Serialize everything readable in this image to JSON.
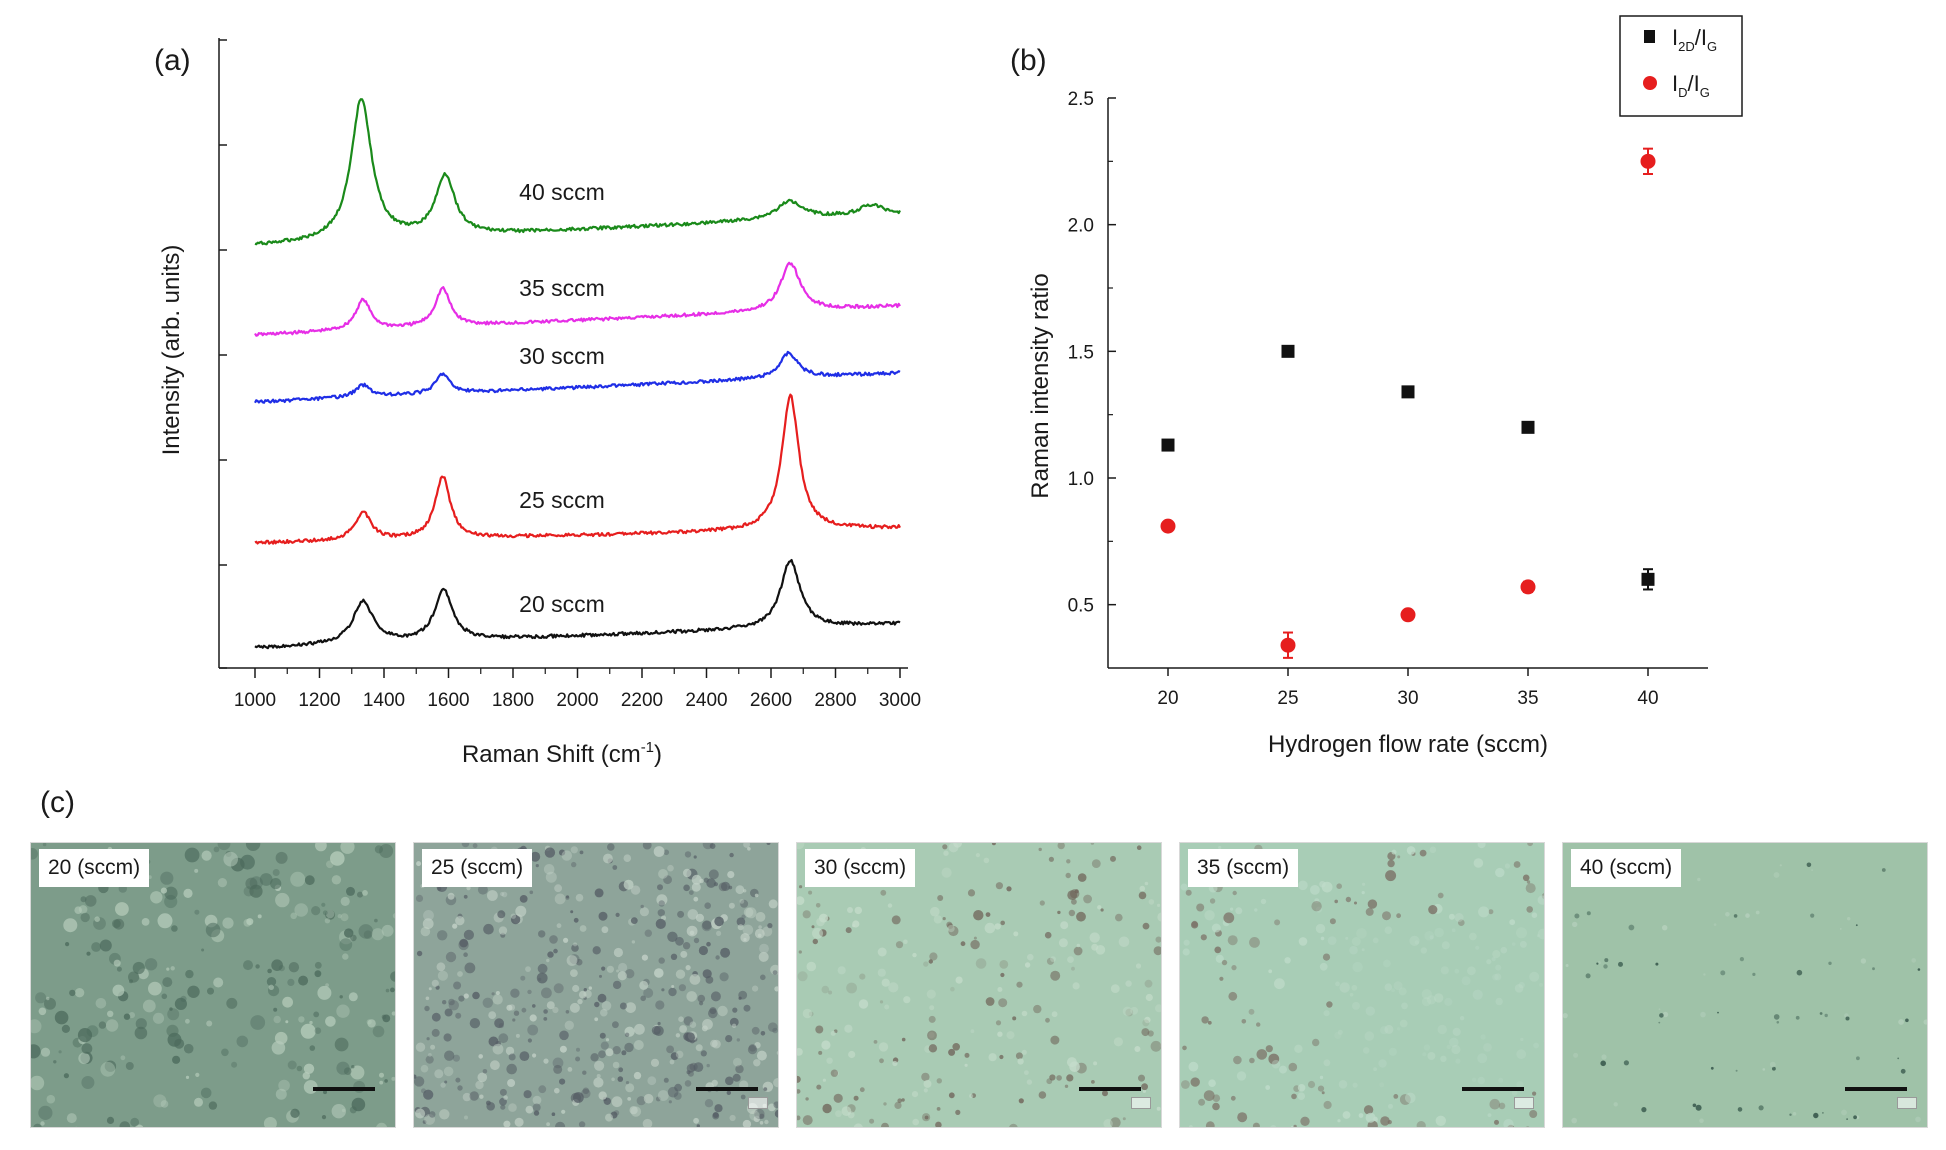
{
  "chart_data": [
    {
      "panel": "(a)",
      "type": "line",
      "xlabel": "Raman Shift (cm",
      "xlabel_sup": "-1",
      "xlabel_end": ")",
      "ylabel": "Intensity (arb. units)",
      "xlim": [
        1000,
        3000
      ],
      "x_ticks": [
        "1000",
        "1200",
        "1400",
        "1600",
        "1800",
        "2000",
        "2200",
        "2400",
        "2600",
        "2800",
        "3000"
      ],
      "grid": false,
      "series": [
        {
          "name": "40 sccm",
          "color": "#1a8a1a",
          "peaks": {
            "D": 1330,
            "G": 1590,
            "2D": 2660
          }
        },
        {
          "name": "35 sccm",
          "color": "#e62ee6",
          "peaks": {
            "D": 1335,
            "G": 1582,
            "2D": 2660
          }
        },
        {
          "name": "30 sccm",
          "color": "#1f2ee6",
          "peaks": {
            "D": 1335,
            "G": 1582,
            "2D": 2655
          }
        },
        {
          "name": "25 sccm",
          "color": "#e61e1e",
          "peaks": {
            "D": 1335,
            "G": 1582,
            "2D": 2660
          }
        },
        {
          "name": "20 sccm",
          "color": "#111111",
          "peaks": {
            "D": 1335,
            "G": 1585,
            "2D": 2660
          }
        }
      ]
    },
    {
      "panel": "(b)",
      "type": "scatter",
      "xlabel": "Hydrogen flow rate (sccm)",
      "ylabel": "Raman intensity ratio",
      "xlim": [
        17.5,
        42.5
      ],
      "ylim": [
        0.25,
        2.5
      ],
      "x_ticks": [
        "20",
        "25",
        "30",
        "35",
        "40"
      ],
      "y_ticks": [
        "0.5",
        "1.0",
        "1.5",
        "2.0",
        "2.5"
      ],
      "grid": false,
      "legend_position": "top-right",
      "series": [
        {
          "name": "I2D/IG",
          "label_main": "I",
          "label_sub": "2D",
          "label_slash": "/I",
          "label_sub2": "G",
          "color": "#111111",
          "marker": "square",
          "x": [
            20,
            25,
            30,
            35,
            40
          ],
          "y": [
            1.13,
            1.5,
            1.34,
            1.2,
            0.6
          ],
          "err": [
            0.02,
            0.02,
            0.02,
            0.01,
            0.04
          ]
        },
        {
          "name": "ID/IG",
          "label_main": "I",
          "label_sub": "D",
          "label_slash": "/I",
          "label_sub2": "G",
          "color": "#e61e1e",
          "marker": "circle",
          "x": [
            20,
            25,
            30,
            35,
            40
          ],
          "y": [
            0.81,
            0.34,
            0.46,
            0.57,
            2.25
          ],
          "err": [
            0.01,
            0.05,
            0.01,
            0.02,
            0.05
          ]
        }
      ]
    }
  ],
  "panel_c": {
    "label": "(c)",
    "images": [
      {
        "caption": "20 (sccm)",
        "base": "#7d9c8a",
        "spot": "#4c6a5c",
        "light": "#b6ccbb"
      },
      {
        "caption": "25 (sccm)",
        "base": "#8ea49a",
        "spot": "#545c64",
        "light": "#c4d2c8"
      },
      {
        "caption": "30 (sccm)",
        "base": "#a9cbb4",
        "spot": "#6f6258",
        "light": "#c5dccb"
      },
      {
        "caption": "35 (sccm)",
        "base": "#a8cdb6",
        "spot": "#7a6e64",
        "light": "#c0dccb"
      },
      {
        "caption": "40 (sccm)",
        "base": "#9fc2a8",
        "spot": "#2a4a40",
        "light": "#b8d2bf"
      }
    ]
  }
}
